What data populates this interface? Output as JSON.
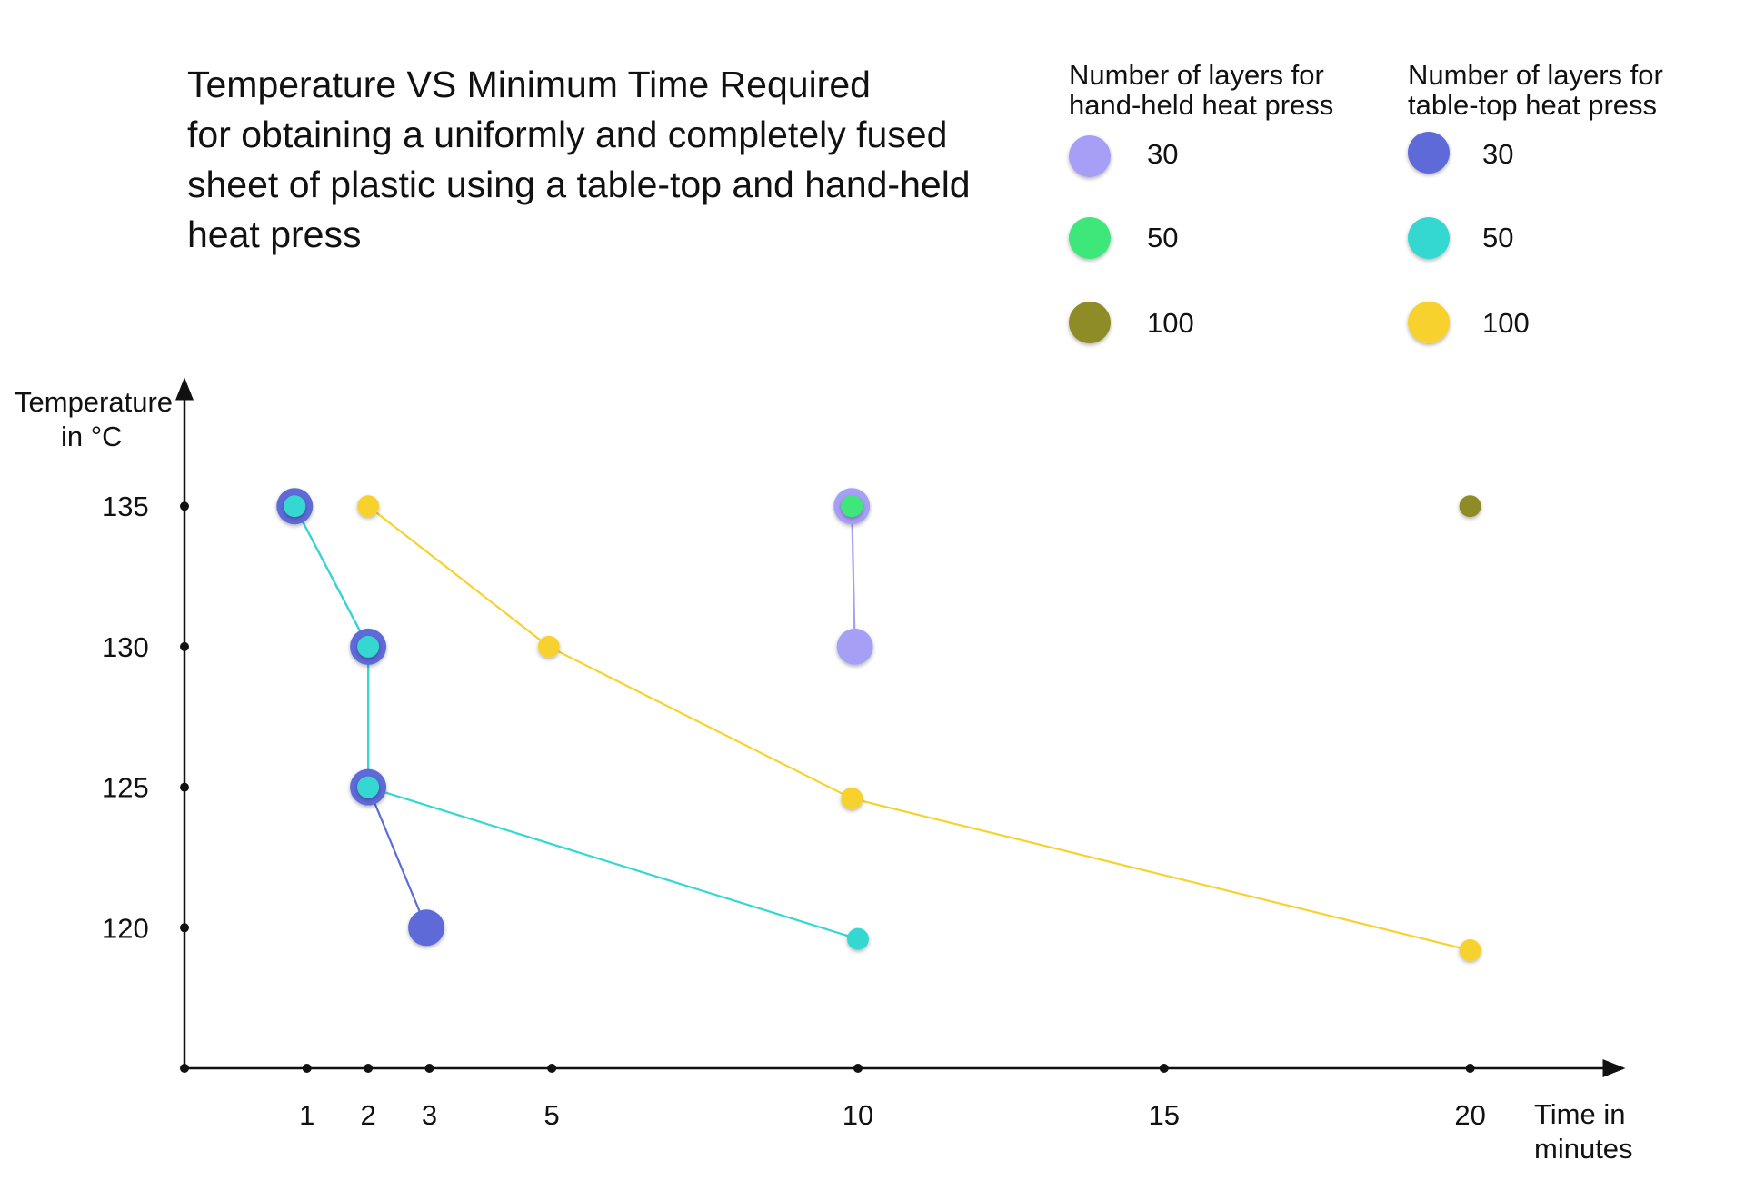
{
  "chart_data": {
    "type": "scatter",
    "title_lines": [
      "Temperature VS Minimum Time Required",
      "for obtaining a uniformly and completely fused",
      "sheet of plastic using a table-top and hand-held",
      "heat press"
    ],
    "xlabel_lines": [
      "Time in",
      "minutes"
    ],
    "ylabel_lines": [
      "Temperature",
      "in  °C"
    ],
    "x_ticks": [
      {
        "value": 1,
        "label": "1"
      },
      {
        "value": 2,
        "label": "2"
      },
      {
        "value": 3,
        "label": "3"
      },
      {
        "value": 5,
        "label": "5"
      },
      {
        "value": 10,
        "label": "10"
      },
      {
        "value": 15,
        "label": "15"
      },
      {
        "value": 20,
        "label": "20"
      }
    ],
    "y_ticks": [
      {
        "value": 120,
        "label": "120"
      },
      {
        "value": 125,
        "label": "125"
      },
      {
        "value": 130,
        "label": "130"
      },
      {
        "value": 135,
        "label": "135"
      }
    ],
    "xlim": [
      -1,
      22.5
    ],
    "ylim": [
      115,
      139.5
    ],
    "grid": false,
    "legend_groups": [
      {
        "title_lines": [
          "Number of layers for",
          "hand-held heat press"
        ],
        "entries": [
          {
            "label": "30",
            "color": "#a79ff6"
          },
          {
            "label": "50",
            "color": "#3ee77a"
          },
          {
            "label": "100",
            "color": "#8e8c28"
          }
        ]
      },
      {
        "title_lines": [
          "Number of layers for",
          "table-top heat press"
        ],
        "entries": [
          {
            "label": "30",
            "color": "#5d6bd8"
          },
          {
            "label": "50",
            "color": "#35d8d0"
          },
          {
            "label": "100",
            "color": "#f7d22e"
          }
        ]
      }
    ],
    "series": [
      {
        "name": "table-top 30",
        "color": "#5d6bd8",
        "size": "large",
        "points": [
          [
            0.8,
            135
          ],
          [
            2,
            130
          ],
          [
            2,
            125
          ],
          [
            2.95,
            120
          ]
        ]
      },
      {
        "name": "table-top 50",
        "color": "#35d8d0",
        "size": "small",
        "points": [
          [
            0.8,
            135
          ],
          [
            2,
            130
          ],
          [
            2,
            125
          ],
          [
            10,
            119.6
          ]
        ]
      },
      {
        "name": "table-top 100",
        "color": "#f7d22e",
        "size": "small",
        "points": [
          [
            2,
            135
          ],
          [
            4.95,
            130
          ],
          [
            9.9,
            124.6
          ],
          [
            20,
            119.2
          ]
        ]
      },
      {
        "name": "hand-held 30",
        "color": "#a79ff6",
        "size": "large",
        "points": [
          [
            9.9,
            135
          ],
          [
            9.95,
            130
          ]
        ]
      },
      {
        "name": "hand-held 50",
        "color": "#3ee77a",
        "size": "small",
        "points": [
          [
            9.9,
            135
          ]
        ]
      },
      {
        "name": "hand-held 100",
        "color": "#8e8c28",
        "size": "small",
        "points": [
          [
            20,
            135
          ]
        ]
      }
    ]
  }
}
